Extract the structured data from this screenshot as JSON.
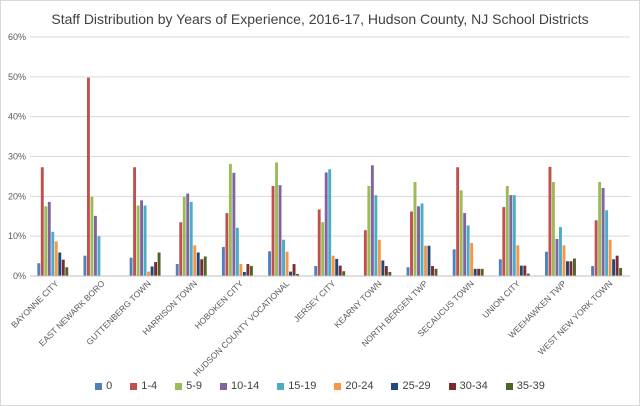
{
  "chart_data": {
    "type": "bar",
    "title": "Staff Distribution by Years of Experience, 2016-17, Hudson County, NJ School Districts",
    "xlabel": "",
    "ylabel": "",
    "ylim": [
      0,
      60
    ],
    "y_ticks": [
      "0%",
      "10%",
      "20%",
      "30%",
      "40%",
      "50%",
      "60%"
    ],
    "y_tick_values": [
      0,
      10,
      20,
      30,
      40,
      50,
      60
    ],
    "grid": true,
    "legend_position": "bottom",
    "categories": [
      "BAYONNE CITY",
      "EAST NEWARK BORO",
      "GUTTENBERG TOWN",
      "HARRISON TOWN",
      "HOBOKEN CITY",
      "HUDSON COUNTY VOCATIONAL",
      "JERSEY CITY",
      "KEARNY TOWN",
      "NORTH BERGEN TWP",
      "SECAUCUS TOWN",
      "UNION CITY",
      "WEEHAWKEN TWP",
      "WEST NEW YORK TOWN"
    ],
    "series": [
      {
        "name": "0",
        "color": "#4f81bd",
        "values": [
          3.2,
          5.1,
          4.6,
          3.0,
          7.3,
          6.2,
          2.5,
          0,
          2.2,
          6.7,
          4.2,
          6.1,
          2.5
        ]
      },
      {
        "name": "1-4",
        "color": "#c0504d",
        "values": [
          27.3,
          49.8,
          27.3,
          13.5,
          15.8,
          22.6,
          16.7,
          11.5,
          16.2,
          27.3,
          17.3,
          27.4,
          14.0
        ]
      },
      {
        "name": "5-9",
        "color": "#9bbb59",
        "values": [
          17.5,
          19.9,
          17.7,
          19.9,
          28.1,
          28.5,
          13.5,
          22.6,
          23.6,
          21.5,
          22.6,
          23.6,
          23.6
        ]
      },
      {
        "name": "10-14",
        "color": "#8064a2",
        "values": [
          18.6,
          15.1,
          19.0,
          20.7,
          25.9,
          22.8,
          26.0,
          27.8,
          17.5,
          15.8,
          20.3,
          9.3,
          22.1
        ]
      },
      {
        "name": "15-19",
        "color": "#4bacc6",
        "values": [
          11.1,
          10.0,
          17.7,
          18.6,
          12.1,
          9.1,
          26.8,
          20.3,
          18.2,
          12.7,
          20.3,
          12.3,
          16.5
        ]
      },
      {
        "name": "20-24",
        "color": "#f79646",
        "values": [
          8.7,
          0,
          1.1,
          7.7,
          3.0,
          6.1,
          5.1,
          9.1,
          7.6,
          8.3,
          7.7,
          7.7,
          9.1
        ]
      },
      {
        "name": "25-29",
        "color": "#1f497d",
        "values": [
          5.9,
          0,
          2.4,
          5.9,
          1.0,
          1.1,
          4.3,
          3.9,
          7.6,
          1.8,
          2.6,
          3.7,
          4.2
        ]
      },
      {
        "name": "30-34",
        "color": "#7b2c2c",
        "values": [
          4.1,
          0,
          3.5,
          4.2,
          3.0,
          3.0,
          2.6,
          2.5,
          2.5,
          1.8,
          2.6,
          3.7,
          5.1
        ]
      },
      {
        "name": "35-39",
        "color": "#4f6228",
        "values": [
          2.2,
          0,
          5.9,
          4.9,
          2.5,
          0.5,
          1.2,
          1.0,
          1.8,
          1.8,
          0.6,
          4.4,
          2.0
        ]
      }
    ]
  }
}
